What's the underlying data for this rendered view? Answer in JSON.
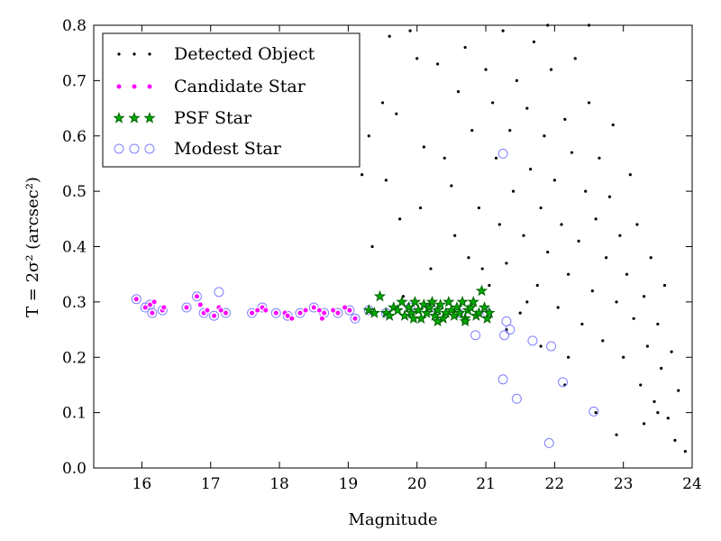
{
  "chart_data": {
    "type": "scatter",
    "xlabel": "Magnitude",
    "ylabel": "T = 2σ² (arcsec²)",
    "xlim": [
      15.3,
      24.0
    ],
    "ylim": [
      0.0,
      0.8
    ],
    "x_ticks": [
      "16",
      "17",
      "18",
      "19",
      "20",
      "21",
      "22",
      "23",
      "24"
    ],
    "y_ticks": [
      "0.0",
      "0.1",
      "0.2",
      "0.3",
      "0.4",
      "0.5",
      "0.6",
      "0.7",
      "0.8"
    ],
    "legend_position": "upper-left",
    "colors": {
      "detected": "#000000",
      "candidate_fill": "#ff00ff",
      "candidate_edge": "#ffffff",
      "psf_fill": "#00aa00",
      "psf_edge": "#006400",
      "modest_edge": "#8080ff"
    },
    "series": [
      {
        "name": "Detected Object",
        "marker": "dot",
        "points": [
          [
            18.9,
            0.62
          ],
          [
            19.0,
            0.55
          ],
          [
            19.2,
            0.53
          ],
          [
            19.3,
            0.6
          ],
          [
            19.35,
            0.4
          ],
          [
            19.5,
            0.66
          ],
          [
            19.55,
            0.52
          ],
          [
            19.6,
            0.78
          ],
          [
            19.7,
            0.64
          ],
          [
            19.75,
            0.45
          ],
          [
            19.8,
            0.31
          ],
          [
            19.9,
            0.79
          ],
          [
            20.0,
            0.74
          ],
          [
            20.05,
            0.47
          ],
          [
            20.1,
            0.58
          ],
          [
            20.2,
            0.36
          ],
          [
            20.3,
            0.73
          ],
          [
            20.4,
            0.56
          ],
          [
            20.5,
            0.51
          ],
          [
            20.55,
            0.42
          ],
          [
            20.6,
            0.68
          ],
          [
            20.7,
            0.76
          ],
          [
            20.75,
            0.38
          ],
          [
            20.8,
            0.61
          ],
          [
            20.9,
            0.47
          ],
          [
            21.0,
            0.72
          ],
          [
            21.05,
            0.33
          ],
          [
            21.1,
            0.66
          ],
          [
            21.15,
            0.56
          ],
          [
            21.2,
            0.44
          ],
          [
            21.25,
            0.79
          ],
          [
            21.3,
            0.37
          ],
          [
            21.35,
            0.61
          ],
          [
            21.4,
            0.5
          ],
          [
            21.45,
            0.7
          ],
          [
            21.5,
            0.28
          ],
          [
            21.55,
            0.42
          ],
          [
            21.6,
            0.65
          ],
          [
            21.65,
            0.54
          ],
          [
            21.7,
            0.77
          ],
          [
            21.75,
            0.33
          ],
          [
            21.8,
            0.47
          ],
          [
            21.85,
            0.6
          ],
          [
            21.9,
            0.39
          ],
          [
            21.95,
            0.72
          ],
          [
            22.0,
            0.52
          ],
          [
            22.05,
            0.29
          ],
          [
            22.1,
            0.44
          ],
          [
            22.15,
            0.63
          ],
          [
            22.2,
            0.35
          ],
          [
            22.25,
            0.57
          ],
          [
            22.3,
            0.74
          ],
          [
            22.35,
            0.41
          ],
          [
            22.4,
            0.26
          ],
          [
            22.45,
            0.5
          ],
          [
            22.5,
            0.66
          ],
          [
            22.55,
            0.32
          ],
          [
            22.6,
            0.45
          ],
          [
            22.65,
            0.56
          ],
          [
            22.7,
            0.23
          ],
          [
            22.75,
            0.38
          ],
          [
            22.8,
            0.49
          ],
          [
            22.85,
            0.62
          ],
          [
            22.9,
            0.3
          ],
          [
            22.95,
            0.42
          ],
          [
            23.0,
            0.2
          ],
          [
            23.05,
            0.35
          ],
          [
            23.1,
            0.53
          ],
          [
            23.15,
            0.27
          ],
          [
            23.2,
            0.44
          ],
          [
            23.25,
            0.15
          ],
          [
            23.3,
            0.31
          ],
          [
            23.35,
            0.22
          ],
          [
            23.4,
            0.38
          ],
          [
            23.45,
            0.12
          ],
          [
            23.5,
            0.26
          ],
          [
            23.55,
            0.18
          ],
          [
            23.6,
            0.33
          ],
          [
            23.65,
            0.09
          ],
          [
            23.7,
            0.21
          ],
          [
            23.75,
            0.05
          ],
          [
            23.8,
            0.14
          ],
          [
            23.9,
            0.03
          ],
          [
            22.15,
            0.15
          ],
          [
            22.5,
            0.8
          ],
          [
            21.9,
            0.8
          ],
          [
            22.2,
            0.2
          ],
          [
            21.6,
            0.3
          ],
          [
            20.95,
            0.36
          ],
          [
            21.3,
            0.25
          ],
          [
            22.6,
            0.1
          ],
          [
            23.5,
            0.1
          ],
          [
            21.8,
            0.22
          ],
          [
            22.9,
            0.06
          ],
          [
            23.3,
            0.08
          ]
        ]
      },
      {
        "name": "Candidate Star",
        "marker": "circle",
        "points": [
          [
            15.92,
            0.305
          ],
          [
            16.05,
            0.29
          ],
          [
            16.12,
            0.295
          ],
          [
            16.15,
            0.28
          ],
          [
            16.18,
            0.3
          ],
          [
            16.3,
            0.285
          ],
          [
            16.32,
            0.29
          ],
          [
            16.65,
            0.29
          ],
          [
            16.8,
            0.31
          ],
          [
            16.85,
            0.295
          ],
          [
            16.9,
            0.28
          ],
          [
            16.95,
            0.285
          ],
          [
            17.05,
            0.275
          ],
          [
            17.12,
            0.29
          ],
          [
            17.15,
            0.285
          ],
          [
            17.22,
            0.28
          ],
          [
            17.6,
            0.28
          ],
          [
            17.68,
            0.285
          ],
          [
            17.75,
            0.29
          ],
          [
            17.8,
            0.285
          ],
          [
            17.95,
            0.28
          ],
          [
            18.08,
            0.28
          ],
          [
            18.12,
            0.275
          ],
          [
            18.18,
            0.27
          ],
          [
            18.3,
            0.28
          ],
          [
            18.38,
            0.285
          ],
          [
            18.5,
            0.29
          ],
          [
            18.58,
            0.285
          ],
          [
            18.65,
            0.28
          ],
          [
            18.62,
            0.27
          ],
          [
            18.78,
            0.285
          ],
          [
            18.85,
            0.28
          ],
          [
            18.95,
            0.29
          ],
          [
            19.02,
            0.285
          ],
          [
            19.1,
            0.27
          ]
        ]
      },
      {
        "name": "PSF Star",
        "marker": "star",
        "points": [
          [
            19.3,
            0.285
          ],
          [
            19.38,
            0.28
          ],
          [
            19.46,
            0.31
          ],
          [
            19.55,
            0.28
          ],
          [
            19.6,
            0.275
          ],
          [
            19.66,
            0.29
          ],
          [
            19.72,
            0.285
          ],
          [
            19.78,
            0.3
          ],
          [
            19.82,
            0.275
          ],
          [
            19.88,
            0.29
          ],
          [
            19.92,
            0.28
          ],
          [
            19.97,
            0.3
          ],
          [
            20.02,
            0.285
          ],
          [
            20.06,
            0.27
          ],
          [
            20.1,
            0.295
          ],
          [
            20.14,
            0.28
          ],
          [
            20.18,
            0.29
          ],
          [
            20.22,
            0.3
          ],
          [
            20.26,
            0.275
          ],
          [
            20.3,
            0.285
          ],
          [
            20.34,
            0.295
          ],
          [
            20.38,
            0.27
          ],
          [
            20.42,
            0.28
          ],
          [
            20.46,
            0.3
          ],
          [
            20.5,
            0.285
          ],
          [
            20.54,
            0.275
          ],
          [
            20.58,
            0.29
          ],
          [
            20.62,
            0.28
          ],
          [
            20.66,
            0.3
          ],
          [
            20.7,
            0.27
          ],
          [
            20.74,
            0.285
          ],
          [
            20.78,
            0.29
          ],
          [
            20.82,
            0.3
          ],
          [
            20.86,
            0.275
          ],
          [
            20.9,
            0.28
          ],
          [
            20.94,
            0.32
          ],
          [
            20.98,
            0.29
          ],
          [
            21.02,
            0.27
          ],
          [
            21.05,
            0.28
          ],
          [
            20.7,
            0.265
          ],
          [
            20.3,
            0.265
          ],
          [
            19.95,
            0.27
          ]
        ]
      },
      {
        "name": "Modest Star",
        "marker": "open-circle",
        "points": [
          [
            15.92,
            0.305
          ],
          [
            16.05,
            0.29
          ],
          [
            16.12,
            0.295
          ],
          [
            16.15,
            0.28
          ],
          [
            16.3,
            0.285
          ],
          [
            16.65,
            0.29
          ],
          [
            16.8,
            0.31
          ],
          [
            16.9,
            0.28
          ],
          [
            17.05,
            0.275
          ],
          [
            17.12,
            0.318
          ],
          [
            17.22,
            0.28
          ],
          [
            17.6,
            0.28
          ],
          [
            17.75,
            0.29
          ],
          [
            17.95,
            0.28
          ],
          [
            18.12,
            0.275
          ],
          [
            18.3,
            0.28
          ],
          [
            18.5,
            0.29
          ],
          [
            18.65,
            0.28
          ],
          [
            18.85,
            0.28
          ],
          [
            19.02,
            0.285
          ],
          [
            19.1,
            0.27
          ],
          [
            19.3,
            0.285
          ],
          [
            19.55,
            0.28
          ],
          [
            19.9,
            0.29
          ],
          [
            20.2,
            0.29
          ],
          [
            20.6,
            0.28
          ],
          [
            20.85,
            0.24
          ],
          [
            21.02,
            0.28
          ],
          [
            21.25,
            0.16
          ],
          [
            21.27,
            0.24
          ],
          [
            21.3,
            0.265
          ],
          [
            21.35,
            0.25
          ],
          [
            21.45,
            0.125
          ],
          [
            21.68,
            0.23
          ],
          [
            21.95,
            0.22
          ],
          [
            22.12,
            0.155
          ],
          [
            21.92,
            0.045
          ],
          [
            22.57,
            0.102
          ],
          [
            21.25,
            0.568
          ]
        ]
      }
    ]
  }
}
